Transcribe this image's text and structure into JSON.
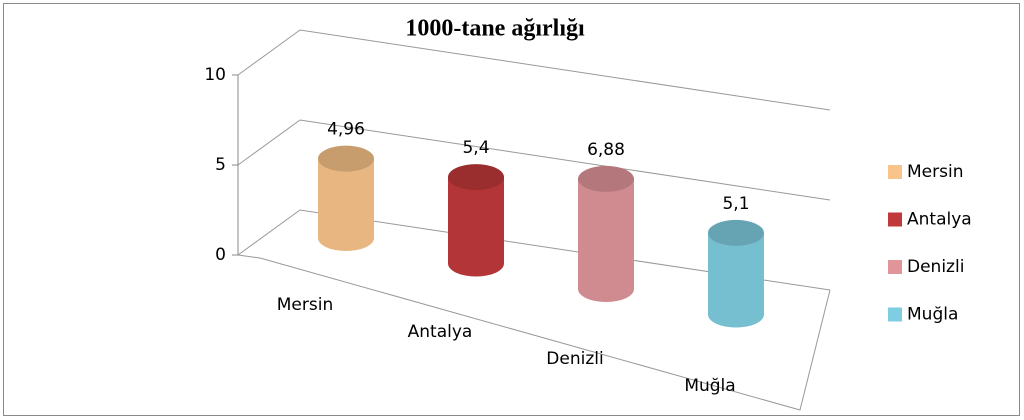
{
  "chart_data": {
    "type": "bar3d",
    "title": "1000-tane ağırlığı",
    "categories": [
      "Mersin",
      "Antalya",
      "Denizli",
      "Muğla"
    ],
    "values": [
      4.96,
      5.4,
      6.88,
      5.1
    ],
    "value_labels": [
      "4,96",
      "5,4",
      "6,88",
      "5,1"
    ],
    "colors": [
      "#f9c48a",
      "#c0393b",
      "#e0959b",
      "#7fcde0"
    ],
    "ylim": [
      0,
      10
    ],
    "yticks": [
      0,
      5,
      10
    ],
    "grid": true,
    "legend": "right"
  }
}
